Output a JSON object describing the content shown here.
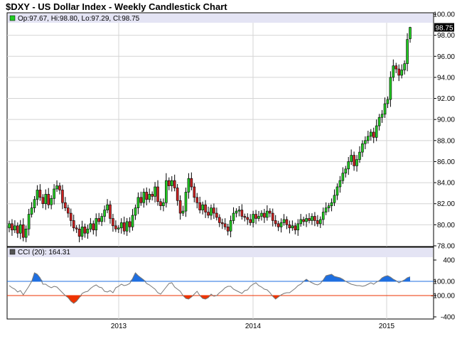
{
  "chart_data": {
    "type": "candlestick",
    "title": "$DXY - US Dollar Index - Weekly Candlestick Chart",
    "last_bar": {
      "op": 97.67,
      "hi": 98.8,
      "lo": 97.29,
      "cl": 98.75
    },
    "legend_label": "Op:97.67, Hi:98.80, Lo:97.29, Cl:98.75",
    "last_price_label": "98.75",
    "y_ticks": [
      "100.00",
      "98.00",
      "96.00",
      "94.00",
      "92.00",
      "90.00",
      "88.00",
      "86.00",
      "84.00",
      "82.00",
      "80.00",
      "78.00"
    ],
    "ylim": [
      78,
      100
    ],
    "x_ticks": [
      "2013",
      "2014",
      "2015"
    ],
    "grid": true,
    "up_color": "#22cc22",
    "down_color": "#cc2222",
    "closes": [
      80.1,
      79.5,
      79.9,
      79.2,
      80.0,
      78.8,
      79.6,
      81.0,
      81.6,
      82.4,
      83.3,
      82.6,
      82.0,
      82.9,
      81.9,
      82.5,
      83.4,
      83.7,
      83.3,
      82.1,
      81.6,
      81.1,
      80.4,
      79.7,
      79.6,
      78.9,
      79.8,
      79.2,
      79.6,
      80.1,
      79.5,
      80.6,
      80.3,
      80.8,
      81.4,
      81.9,
      80.6,
      79.9,
      79.6,
      79.7,
      80.2,
      79.4,
      80.3,
      79.8,
      80.9,
      81.6,
      82.6,
      82.1,
      83.1,
      82.4,
      82.9,
      82.7,
      83.6,
      82.2,
      81.8,
      82.1,
      84.2,
      83.7,
      84.2,
      83.5,
      82.3,
      81.1,
      81.3,
      83.1,
      84.4,
      83.6,
      82.6,
      82.1,
      81.4,
      81.9,
      81.2,
      80.9,
      81.6,
      81.1,
      80.7,
      80.2,
      80.1,
      79.8,
      79.4,
      80.4,
      81.1,
      81.3,
      81.4,
      80.8,
      80.7,
      80.5,
      80.2,
      81.0,
      80.6,
      80.8,
      81.1,
      80.7,
      81.3,
      81.1,
      80.4,
      80.1,
      79.8,
      80.2,
      80.5,
      80.0,
      79.7,
      79.9,
      79.5,
      80.1,
      80.5,
      80.3,
      80.6,
      80.4,
      80.8,
      80.4,
      80.1,
      80.5,
      81.2,
      81.6,
      81.8,
      82.1,
      82.8,
      83.6,
      84.2,
      84.9,
      85.3,
      86.0,
      86.6,
      85.6,
      86.2,
      86.9,
      87.7,
      88.0,
      88.4,
      88.8,
      88.3,
      89.4,
      90.2,
      90.5,
      91.5,
      91.9,
      94.0,
      95.1,
      94.8,
      94.2,
      94.7,
      95.3,
      97.6,
      98.75
    ]
  },
  "cci": {
    "label": "CCI (20): 164.31",
    "y_ticks": [
      "400",
      "100.00",
      "-100.00",
      "-400"
    ],
    "levels": {
      "upper": 100,
      "lower": -100
    },
    "ylim": [
      -400,
      400
    ],
    "values": [
      40,
      10,
      -10,
      -50,
      -30,
      -90,
      -30,
      30,
      100,
      220,
      200,
      150,
      60,
      60,
      30,
      10,
      30,
      20,
      -20,
      -60,
      -100,
      -130,
      -180,
      -210,
      -180,
      -130,
      -70,
      -50,
      -40,
      0,
      30,
      50,
      20,
      10,
      -40,
      -50,
      -30,
      -60,
      10,
      30,
      60,
      40,
      50,
      70,
      140,
      220,
      180,
      150,
      120,
      70,
      50,
      20,
      -10,
      -60,
      -80,
      -30,
      20,
      70,
      80,
      20,
      -10,
      -40,
      -100,
      -140,
      -150,
      -120,
      -80,
      -40,
      -100,
      -140,
      -150,
      -130,
      -80,
      -110,
      -100,
      -60,
      -30,
      10,
      30,
      30,
      -10,
      -30,
      -50,
      -70,
      -30,
      -20,
      30,
      60,
      80,
      40,
      20,
      -10,
      -20,
      -60,
      -110,
      -150,
      -120,
      -90,
      -70,
      -60,
      -60,
      -30,
      0,
      40,
      60,
      100,
      130,
      100,
      80,
      60,
      50,
      70,
      120,
      180,
      190,
      200,
      170,
      160,
      150,
      130,
      100,
      80,
      60,
      50,
      40,
      40,
      30,
      40,
      60,
      80,
      60,
      90,
      110,
      150,
      170,
      180,
      160,
      130,
      110,
      80,
      100,
      120,
      150,
      164.31
    ]
  },
  "colors": {
    "cci_fill": "#1f6fe0",
    "cci_neg_fill": "#ee3300",
    "upper_line": "#1f6fe0",
    "lower_line": "#ee3300"
  }
}
